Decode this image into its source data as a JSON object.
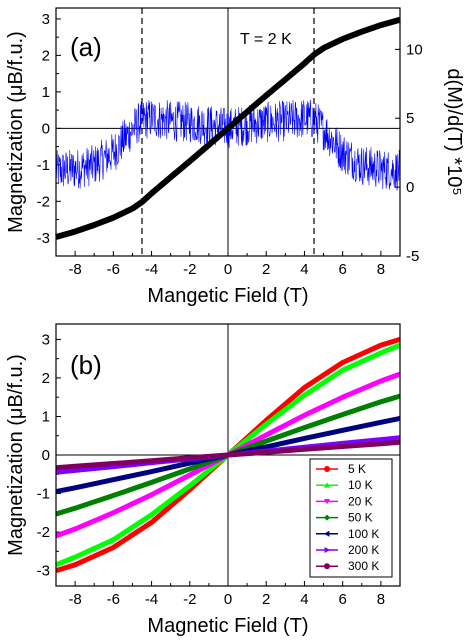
{
  "chart_data": [
    {
      "panel_label": "(a)",
      "type": "line",
      "annotation": "T = 2 K",
      "xlabel": "Mangetic Field (T)",
      "ylabel": "Magnetization (μB/f.u.)",
      "ylabel2": "d(M)/d(T) *10⁵",
      "xlim": [
        -9,
        9
      ],
      "ylim": [
        -3.5,
        3.3
      ],
      "y2lim": [
        -5,
        13
      ],
      "xticks": [
        -8,
        -6,
        -4,
        -2,
        0,
        2,
        4,
        6,
        8
      ],
      "yticks": [
        -3,
        -2,
        -1,
        0,
        1,
        2,
        3
      ],
      "y2ticks": [
        -5,
        0,
        5,
        10
      ],
      "dashed_lines_x": [
        -4.5,
        4.5
      ],
      "series": [
        {
          "color": "#000000",
          "x": [
            -9,
            -8,
            -7,
            -6,
            -5,
            -4.5,
            -4,
            -3,
            -2,
            -1,
            0,
            1,
            2,
            3,
            4,
            4.5,
            5,
            6,
            7,
            8,
            9
          ],
          "y": [
            -2.98,
            -2.83,
            -2.65,
            -2.45,
            -2.2,
            -2.02,
            -1.78,
            -1.34,
            -0.9,
            -0.45,
            0,
            0.45,
            0.9,
            1.34,
            1.78,
            2.02,
            2.2,
            2.45,
            2.65,
            2.83,
            2.98
          ]
        },
        {
          "color": "#0000ff",
          "axis": "right",
          "x": [
            -9,
            -8,
            -7,
            -6,
            -5,
            -4.5,
            -4,
            -3,
            -2,
            -1,
            0,
            1,
            2,
            3,
            4,
            4.5,
            5,
            6,
            7,
            8,
            9
          ],
          "y": [
            1.2,
            1.3,
            1.6,
            2.5,
            4.2,
            4.9,
            5.0,
            4.8,
            4.7,
            4.5,
            4.3,
            4.5,
            4.7,
            4.8,
            5.0,
            4.9,
            4.2,
            2.5,
            1.6,
            1.3,
            1.2
          ]
        }
      ]
    },
    {
      "panel_label": "(b)",
      "type": "line",
      "xlabel": "Magnetic Field (T)",
      "ylabel": "Magnetization (μB/f.u.)",
      "xlim": [
        -9,
        9
      ],
      "ylim": [
        -3.4,
        3.4
      ],
      "xticks": [
        -8,
        -6,
        -4,
        -2,
        0,
        2,
        4,
        6,
        8
      ],
      "yticks": [
        -3,
        -2,
        -1,
        0,
        1,
        2,
        3
      ],
      "legend_position": "bottom-right",
      "series": [
        {
          "name": "5 K",
          "color": "#ff0000",
          "marker": "circle",
          "x": [
            -9,
            -8,
            -6,
            -4,
            -2,
            0,
            2,
            4,
            6,
            8,
            9
          ],
          "y": [
            -3.0,
            -2.85,
            -2.4,
            -1.75,
            -0.9,
            0,
            0.9,
            1.75,
            2.4,
            2.85,
            3.0
          ]
        },
        {
          "name": "10 K",
          "color": "#00ff00",
          "marker": "triangle-up",
          "x": [
            -9,
            -8,
            -6,
            -4,
            -2,
            0,
            2,
            4,
            6,
            8,
            9
          ],
          "y": [
            -2.85,
            -2.65,
            -2.2,
            -1.55,
            -0.8,
            0,
            0.8,
            1.55,
            2.2,
            2.65,
            2.85
          ]
        },
        {
          "name": "20 K",
          "color": "#ff00ff",
          "marker": "triangle-down",
          "x": [
            -9,
            -8,
            -6,
            -4,
            -2,
            0,
            2,
            4,
            6,
            8,
            9
          ],
          "y": [
            -2.1,
            -1.92,
            -1.5,
            -1.03,
            -0.52,
            0,
            0.52,
            1.03,
            1.5,
            1.92,
            2.1
          ]
        },
        {
          "name": "50 K",
          "color": "#008000",
          "marker": "diamond",
          "x": [
            -9,
            -8,
            -6,
            -4,
            -2,
            0,
            2,
            4,
            6,
            8,
            9
          ],
          "y": [
            -1.53,
            -1.38,
            -1.05,
            -0.71,
            -0.36,
            0,
            0.36,
            0.71,
            1.05,
            1.38,
            1.53
          ]
        },
        {
          "name": "100 K",
          "color": "#000080",
          "marker": "triangle-left",
          "x": [
            -9,
            -8,
            -6,
            -4,
            -2,
            0,
            2,
            4,
            6,
            8,
            9
          ],
          "y": [
            -0.95,
            -0.85,
            -0.64,
            -0.43,
            -0.21,
            0,
            0.21,
            0.43,
            0.64,
            0.85,
            0.95
          ]
        },
        {
          "name": "200 K",
          "color": "#8000ff",
          "marker": "triangle-right",
          "x": [
            -9,
            -8,
            -6,
            -4,
            -2,
            0,
            2,
            4,
            6,
            8,
            9
          ],
          "y": [
            -0.45,
            -0.4,
            -0.3,
            -0.2,
            -0.1,
            0,
            0.1,
            0.2,
            0.3,
            0.4,
            0.45
          ]
        },
        {
          "name": "300 K",
          "color": "#800060",
          "marker": "circle",
          "x": [
            -9,
            -8,
            -6,
            -4,
            -2,
            0,
            2,
            4,
            6,
            8,
            9
          ],
          "y": [
            -0.33,
            -0.29,
            -0.22,
            -0.15,
            -0.07,
            0,
            0.07,
            0.15,
            0.22,
            0.29,
            0.33
          ]
        }
      ]
    }
  ]
}
